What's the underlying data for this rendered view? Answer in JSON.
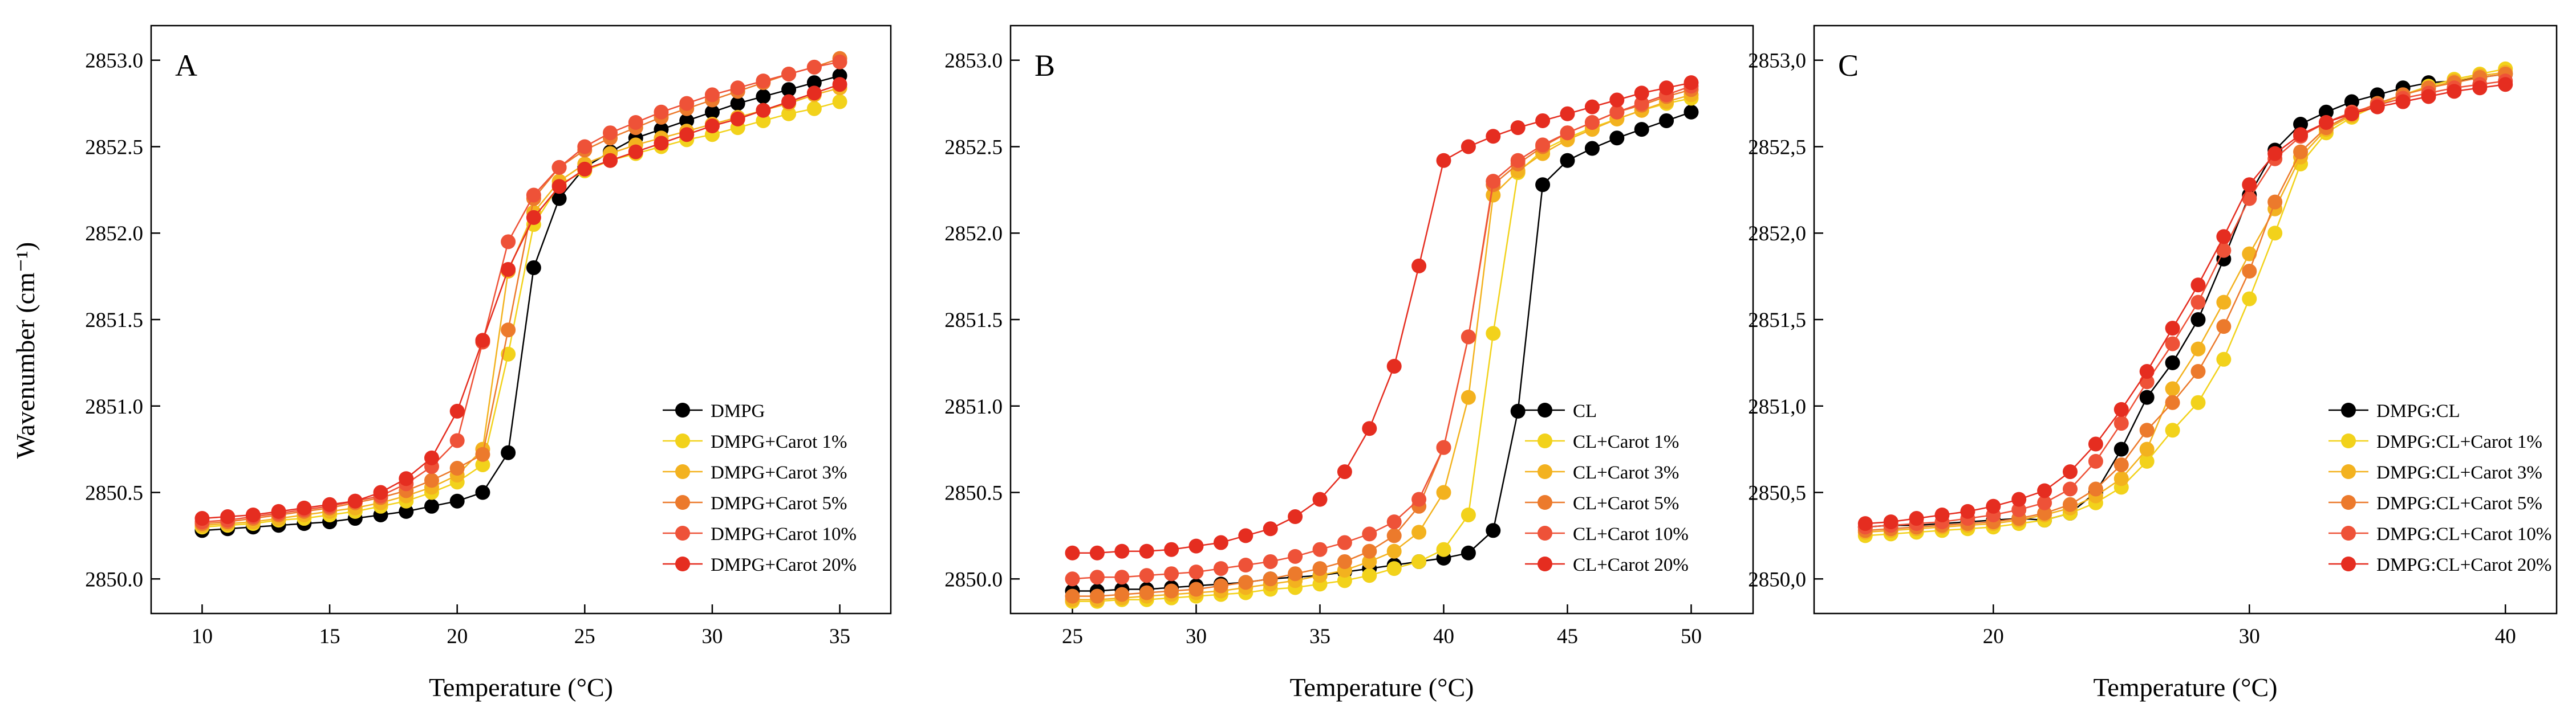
{
  "figure": {
    "ylabel": "Wavenumber (cm⁻¹)",
    "xlabel": "Temperature (°C)"
  },
  "chart_data": [
    {
      "type": "line",
      "panel": "A",
      "xlabel": "Temperature (°C)",
      "ylabel": "Wavenumber (cm⁻¹)",
      "xlim": [
        8,
        37
      ],
      "ylim": [
        2849.8,
        2853.2
      ],
      "xticks": [
        10,
        15,
        20,
        25,
        30,
        35
      ],
      "yticks": [
        2850.0,
        2850.5,
        2851.0,
        2851.5,
        2852.0,
        2852.5,
        2853.0
      ],
      "ytick_labels": [
        "2850.0",
        "2850.5",
        "2851.0",
        "2851.5",
        "2852.0",
        "2852.5",
        "2853.0"
      ],
      "legend_position": "bottom-right",
      "x": [
        10,
        11,
        12,
        13,
        14,
        15,
        16,
        17,
        18,
        19,
        20,
        21,
        22,
        23,
        24,
        25,
        26,
        27,
        28,
        29,
        30,
        31,
        32,
        33,
        34,
        35
      ],
      "series": [
        {
          "name": "DMPG",
          "color": "#000000",
          "values": [
            2850.28,
            2850.29,
            2850.3,
            2850.31,
            2850.32,
            2850.33,
            2850.35,
            2850.37,
            2850.39,
            2850.42,
            2850.45,
            2850.5,
            2850.73,
            2851.8,
            2852.2,
            2852.38,
            2852.47,
            2852.55,
            2852.6,
            2852.65,
            2852.7,
            2852.75,
            2852.79,
            2852.83,
            2852.87,
            2852.91
          ]
        },
        {
          "name": "DMPG+Carot 1%",
          "color": "#f2d21b",
          "values": [
            2850.3,
            2850.31,
            2850.32,
            2850.34,
            2850.35,
            2850.37,
            2850.39,
            2850.42,
            2850.45,
            2850.5,
            2850.56,
            2850.66,
            2851.3,
            2852.05,
            2852.28,
            2852.36,
            2852.42,
            2852.46,
            2852.5,
            2852.54,
            2852.57,
            2852.61,
            2852.65,
            2852.69,
            2852.72,
            2852.76
          ]
        },
        {
          "name": "DMPG+Carot 3%",
          "color": "#f3b21f",
          "values": [
            2850.31,
            2850.32,
            2850.33,
            2850.35,
            2850.37,
            2850.39,
            2850.41,
            2850.44,
            2850.48,
            2850.53,
            2850.6,
            2850.75,
            2851.78,
            2852.12,
            2852.3,
            2852.4,
            2852.46,
            2852.51,
            2852.55,
            2852.59,
            2852.63,
            2852.67,
            2852.71,
            2852.75,
            2852.8,
            2852.84
          ]
        },
        {
          "name": "DMPG+Carot 5%",
          "color": "#ec7a2c",
          "values": [
            2850.32,
            2850.33,
            2850.35,
            2850.37,
            2850.39,
            2850.41,
            2850.44,
            2850.47,
            2850.51,
            2850.57,
            2850.64,
            2850.72,
            2851.44,
            2852.2,
            2852.38,
            2852.48,
            2852.55,
            2852.61,
            2852.67,
            2852.72,
            2852.77,
            2852.82,
            2852.87,
            2852.92,
            2852.96,
            2853.01
          ]
        },
        {
          "name": "DMPG+Carot 10%",
          "color": "#ee5238",
          "values": [
            2850.33,
            2850.34,
            2850.36,
            2850.38,
            2850.4,
            2850.42,
            2850.45,
            2850.48,
            2850.55,
            2850.65,
            2850.8,
            2851.37,
            2851.95,
            2852.22,
            2852.38,
            2852.5,
            2852.58,
            2852.64,
            2852.7,
            2852.75,
            2852.8,
            2852.84,
            2852.88,
            2852.92,
            2852.96,
            2852.99
          ]
        },
        {
          "name": "DMPG+Carot 20%",
          "color": "#e52d20",
          "values": [
            2850.35,
            2850.36,
            2850.37,
            2850.39,
            2850.41,
            2850.43,
            2850.45,
            2850.5,
            2850.58,
            2850.7,
            2850.97,
            2851.38,
            2851.79,
            2852.09,
            2852.27,
            2852.37,
            2852.42,
            2852.47,
            2852.52,
            2852.57,
            2852.62,
            2852.66,
            2852.71,
            2852.76,
            2852.81,
            2852.86
          ]
        }
      ]
    },
    {
      "type": "line",
      "panel": "B",
      "xlabel": "Temperature (°C)",
      "ylabel": "",
      "xlim": [
        22.5,
        52.5
      ],
      "ylim": [
        2849.8,
        2853.2
      ],
      "xticks": [
        25,
        30,
        35,
        40,
        45,
        50
      ],
      "yticks": [
        2850.0,
        2850.5,
        2851.0,
        2851.5,
        2852.0,
        2852.5,
        2853.0
      ],
      "ytick_labels": [
        "2850.0",
        "2850.5",
        "2851.0",
        "2851.5",
        "2852.0",
        "2852.5",
        "2853.0"
      ],
      "legend_position": "bottom-right",
      "x": [
        25,
        26,
        27,
        28,
        29,
        30,
        31,
        32,
        33,
        34,
        35,
        36,
        37,
        38,
        39,
        40,
        41,
        42,
        43,
        44,
        45,
        46,
        47,
        48,
        49,
        50
      ],
      "series": [
        {
          "name": "CL",
          "color": "#000000",
          "values": [
            2849.93,
            2849.93,
            2849.94,
            2849.94,
            2849.95,
            2849.96,
            2849.97,
            2849.98,
            2850.0,
            2850.01,
            2850.02,
            2850.04,
            2850.06,
            2850.08,
            2850.1,
            2850.12,
            2850.15,
            2850.28,
            2850.97,
            2852.28,
            2852.42,
            2852.49,
            2852.55,
            2852.6,
            2852.65,
            2852.7
          ]
        },
        {
          "name": "CL+Carot 1%",
          "color": "#f2d21b",
          "values": [
            2849.87,
            2849.87,
            2849.88,
            2849.88,
            2849.89,
            2849.9,
            2849.91,
            2849.92,
            2849.94,
            2849.95,
            2849.97,
            2849.99,
            2850.02,
            2850.06,
            2850.1,
            2850.17,
            2850.37,
            2851.42,
            2852.35,
            2852.48,
            2852.55,
            2852.61,
            2852.66,
            2852.71,
            2852.75,
            2852.78
          ]
        },
        {
          "name": "CL+Carot 3%",
          "color": "#f3b21f",
          "values": [
            2849.88,
            2849.88,
            2849.89,
            2849.9,
            2849.91,
            2849.92,
            2849.93,
            2849.95,
            2849.97,
            2849.99,
            2850.02,
            2850.05,
            2850.1,
            2850.16,
            2850.27,
            2850.5,
            2851.05,
            2852.22,
            2852.36,
            2852.46,
            2852.54,
            2852.6,
            2852.66,
            2852.71,
            2852.76,
            2852.8
          ]
        },
        {
          "name": "CL+Carot 5%",
          "color": "#ec7a2c",
          "values": [
            2849.9,
            2849.9,
            2849.91,
            2849.92,
            2849.93,
            2849.94,
            2849.96,
            2849.98,
            2850.0,
            2850.03,
            2850.06,
            2850.1,
            2850.16,
            2850.25,
            2850.42,
            2850.76,
            2851.4,
            2852.28,
            2852.4,
            2852.5,
            2852.58,
            2852.64,
            2852.7,
            2852.74,
            2852.79,
            2852.83
          ]
        },
        {
          "name": "CL+Carot 10%",
          "color": "#ee5238",
          "values": [
            2850.0,
            2850.01,
            2850.01,
            2850.02,
            2850.03,
            2850.04,
            2850.06,
            2850.08,
            2850.1,
            2850.13,
            2850.17,
            2850.21,
            2850.26,
            2850.33,
            2850.46,
            2850.76,
            2851.4,
            2852.3,
            2852.42,
            2852.51,
            2852.58,
            2852.64,
            2852.7,
            2852.75,
            2852.8,
            2852.85
          ]
        },
        {
          "name": "CL+Carot 20%",
          "color": "#e52d20",
          "values": [
            2850.15,
            2850.15,
            2850.16,
            2850.16,
            2850.17,
            2850.19,
            2850.21,
            2850.25,
            2850.29,
            2850.36,
            2850.46,
            2850.62,
            2850.87,
            2851.23,
            2851.81,
            2852.42,
            2852.5,
            2852.56,
            2852.61,
            2852.65,
            2852.69,
            2852.73,
            2852.77,
            2852.81,
            2852.84,
            2852.87
          ]
        }
      ]
    },
    {
      "type": "line",
      "panel": "C",
      "xlabel": "Temperature (°C)",
      "ylabel": "",
      "xlim": [
        13,
        42
      ],
      "ylim": [
        2849.8,
        2853.2
      ],
      "xticks": [
        20,
        30,
        40
      ],
      "yticks": [
        2850.0,
        2850.5,
        2851.0,
        2851.5,
        2852.0,
        2852.5,
        2853.0
      ],
      "ytick_labels": [
        "2850,0",
        "2850,5",
        "2851,0",
        "2851,5",
        "2852,0",
        "2852,5",
        "2853,0"
      ],
      "legend_position": "bottom-right",
      "x": [
        15,
        16,
        17,
        18,
        19,
        20,
        21,
        22,
        23,
        24,
        25,
        26,
        27,
        28,
        29,
        30,
        31,
        32,
        33,
        34,
        35,
        36,
        37,
        38,
        39,
        40
      ],
      "series": [
        {
          "name": "DMPG:CL",
          "color": "#000000",
          "values": [
            2850.3,
            2850.31,
            2850.31,
            2850.32,
            2850.33,
            2850.34,
            2850.35,
            2850.34,
            2850.38,
            2850.5,
            2850.75,
            2851.05,
            2851.25,
            2851.5,
            2851.85,
            2852.22,
            2852.48,
            2852.63,
            2852.7,
            2852.76,
            2852.8,
            2852.84,
            2852.87,
            2852.88,
            2852.9,
            2852.92
          ]
        },
        {
          "name": "DMPG:CL+Carot 1%",
          "color": "#f2d21b",
          "values": [
            2850.25,
            2850.26,
            2850.27,
            2850.28,
            2850.29,
            2850.3,
            2850.32,
            2850.34,
            2850.38,
            2850.44,
            2850.53,
            2850.68,
            2850.86,
            2851.02,
            2851.27,
            2851.62,
            2852.0,
            2852.4,
            2852.58,
            2852.67,
            2852.74,
            2852.8,
            2852.85,
            2852.89,
            2852.92,
            2852.95
          ]
        },
        {
          "name": "DMPG:CL+Carot 3%",
          "color": "#f3b21f",
          "values": [
            2850.27,
            2850.28,
            2850.29,
            2850.3,
            2850.31,
            2850.32,
            2850.34,
            2850.37,
            2850.41,
            2850.48,
            2850.58,
            2850.75,
            2851.1,
            2851.33,
            2851.6,
            2851.88,
            2852.14,
            2852.44,
            2852.6,
            2852.68,
            2852.75,
            2852.8,
            2852.84,
            2852.88,
            2852.91,
            2852.93
          ]
        },
        {
          "name": "DMPG:CL+Carot 5%",
          "color": "#ec7a2c",
          "values": [
            2850.28,
            2850.29,
            2850.3,
            2850.31,
            2850.32,
            2850.33,
            2850.35,
            2850.38,
            2850.43,
            2850.52,
            2850.66,
            2850.86,
            2851.02,
            2851.2,
            2851.46,
            2851.78,
            2852.18,
            2852.47,
            2852.61,
            2852.69,
            2852.75,
            2852.8,
            2852.84,
            2852.87,
            2852.9,
            2852.92
          ]
        },
        {
          "name": "DMPG:CL+Carot 10%",
          "color": "#ee5238",
          "values": [
            2850.3,
            2850.31,
            2850.32,
            2850.33,
            2850.35,
            2850.37,
            2850.4,
            2850.44,
            2850.52,
            2850.68,
            2850.9,
            2851.14,
            2851.36,
            2851.6,
            2851.9,
            2852.2,
            2852.43,
            2852.56,
            2852.64,
            2852.7,
            2852.74,
            2852.78,
            2852.81,
            2852.84,
            2852.86,
            2852.88
          ]
        },
        {
          "name": "DMPG:CL+Carot 20%",
          "color": "#e52d20",
          "values": [
            2850.32,
            2850.33,
            2850.35,
            2850.37,
            2850.39,
            2850.42,
            2850.46,
            2850.51,
            2850.62,
            2850.78,
            2850.98,
            2851.2,
            2851.45,
            2851.7,
            2851.98,
            2852.28,
            2852.46,
            2852.57,
            2852.64,
            2852.69,
            2852.73,
            2852.76,
            2852.79,
            2852.82,
            2852.84,
            2852.86
          ]
        }
      ]
    }
  ]
}
